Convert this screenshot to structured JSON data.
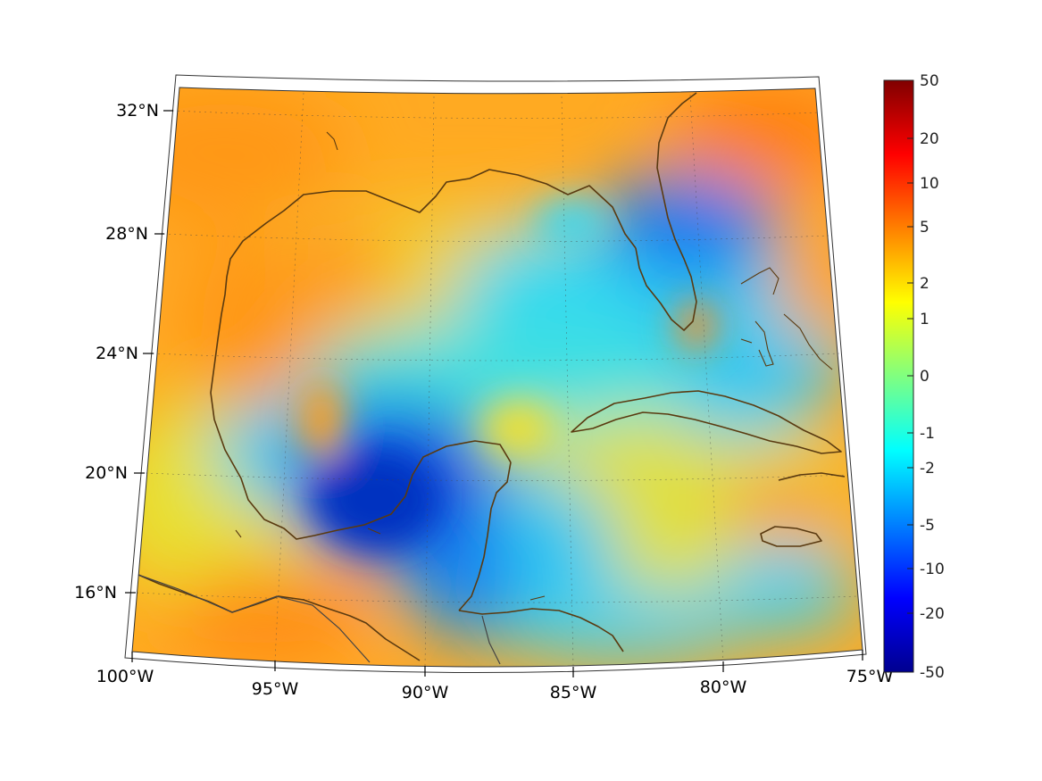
{
  "map": {
    "lon_ticks": [
      "100°W",
      "95°W",
      "90°W",
      "85°W",
      "80°W",
      "75°W"
    ],
    "lat_ticks": [
      "32°N",
      "28°N",
      "24°N",
      "20°N",
      "16°N"
    ]
  },
  "colorbar": {
    "labels": [
      "50",
      "20",
      "10",
      "5",
      "2",
      "1",
      "0",
      "-1",
      "-2",
      "-5",
      "-10",
      "-20",
      "-50"
    ],
    "colors": [
      "#00008f",
      "#0000ff",
      "#0080ff",
      "#00ffff",
      "#80ff80",
      "#ffff00",
      "#ff8000",
      "#ff0000",
      "#800000"
    ]
  }
}
